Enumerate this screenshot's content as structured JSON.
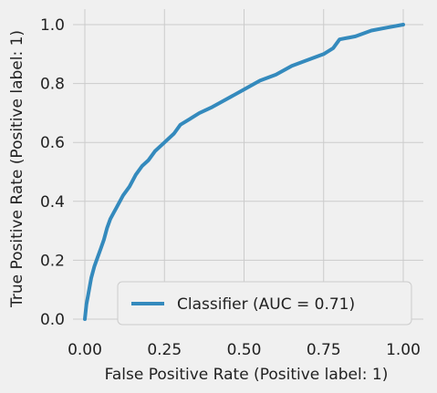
{
  "chart_data": {
    "type": "line",
    "title": "",
    "xlabel": "False Positive Rate (Positive label: 1)",
    "ylabel": "True Positive Rate (Positive label: 1)",
    "xlim": [
      0,
      1
    ],
    "ylim": [
      0,
      1
    ],
    "x_ticks": [
      "0.00",
      "0.25",
      "0.50",
      "0.75",
      "1.00"
    ],
    "y_ticks": [
      "0.0",
      "0.2",
      "0.4",
      "0.6",
      "0.8",
      "1.0"
    ],
    "grid": true,
    "legend_position": "bottom-right",
    "series": [
      {
        "name": "Classifier (AUC = 0.71)",
        "color": "#348ABD",
        "x": [
          0.0,
          0.005,
          0.01,
          0.02,
          0.03,
          0.04,
          0.05,
          0.06,
          0.07,
          0.08,
          0.09,
          0.1,
          0.12,
          0.14,
          0.16,
          0.18,
          0.2,
          0.22,
          0.25,
          0.28,
          0.3,
          0.33,
          0.36,
          0.4,
          0.45,
          0.5,
          0.55,
          0.6,
          0.65,
          0.7,
          0.75,
          0.78,
          0.8,
          0.85,
          0.9,
          0.95,
          1.0
        ],
        "y": [
          0.0,
          0.05,
          0.08,
          0.14,
          0.18,
          0.21,
          0.24,
          0.27,
          0.31,
          0.34,
          0.36,
          0.38,
          0.42,
          0.45,
          0.49,
          0.52,
          0.54,
          0.57,
          0.6,
          0.63,
          0.66,
          0.68,
          0.7,
          0.72,
          0.75,
          0.78,
          0.81,
          0.83,
          0.86,
          0.88,
          0.9,
          0.92,
          0.95,
          0.96,
          0.98,
          0.99,
          1.0
        ]
      }
    ]
  }
}
